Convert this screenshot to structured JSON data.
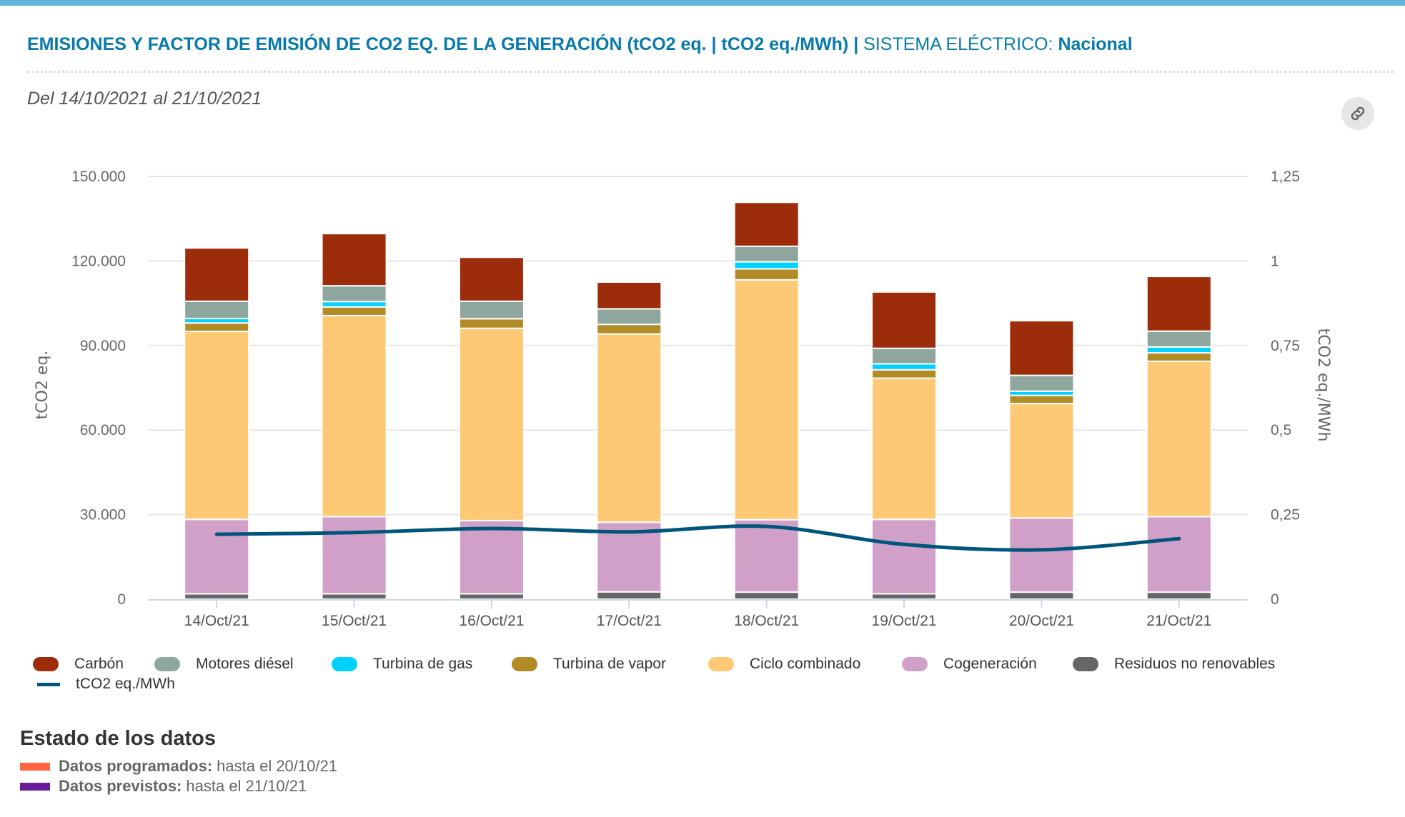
{
  "header": {
    "title_bold": "EMISIONES Y FACTOR DE EMISIÓN DE CO2 EQ. DE LA GENERACIÓN (tCO2 eq. | tCO2 eq./MWh) |",
    "title_system_label": "SISTEMA ELÉCTRICO:",
    "title_system_value": "Nacional",
    "subtitle": "Del 14/10/2021 al 21/10/2021",
    "link_icon": "link-icon"
  },
  "chart_data": {
    "type": "bar",
    "stacked": true,
    "categories": [
      "14/Oct/21",
      "15/Oct/21",
      "16/Oct/21",
      "17/Oct/21",
      "18/Oct/21",
      "19/Oct/21",
      "20/Oct/21",
      "21/Oct/21"
    ],
    "ylabel": "tCO2 eq.",
    "y2label": "tCO2 eq./MWh",
    "ylim": [
      0,
      150000
    ],
    "y2lim": [
      0,
      1.25
    ],
    "yticks": [
      "0",
      "30.000",
      "60.000",
      "90.000",
      "120.000",
      "150.000"
    ],
    "y2ticks": [
      "0",
      "0,25",
      "0,5",
      "0,75",
      "1",
      "1,25"
    ],
    "grid": true,
    "legend_position": "bottom",
    "series": [
      {
        "name": "Residuos no renovables",
        "color": "#666666",
        "values": [
          1900,
          1900,
          1900,
          2600,
          2500,
          1900,
          2500,
          2500
        ]
      },
      {
        "name": "Cogeneración",
        "color": "#d0a0c8",
        "values": [
          26400,
          27400,
          26000,
          24700,
          25700,
          26400,
          26300,
          26800
        ]
      },
      {
        "name": "Ciclo combinado",
        "color": "#fec975",
        "values": [
          66700,
          71300,
          68200,
          66800,
          85100,
          50100,
          40600,
          55100
        ]
      },
      {
        "name": "Turbina de vapor",
        "color": "#b38b26",
        "values": [
          3000,
          3100,
          3400,
          3400,
          3900,
          3000,
          2900,
          3000
        ]
      },
      {
        "name": "Turbina de gas",
        "color": "#00d2ff",
        "values": [
          1600,
          1900,
          0,
          0,
          2500,
          2100,
          1500,
          2100
        ]
      },
      {
        "name": "Motores diésel",
        "color": "#8fa69f",
        "values": [
          6100,
          5600,
          6200,
          5500,
          5500,
          5500,
          5600,
          5600
        ]
      },
      {
        "name": "Carbón",
        "color": "#9c2c0a",
        "values": [
          18900,
          18500,
          15600,
          9500,
          15600,
          20000,
          19400,
          19400
        ]
      }
    ],
    "line_series": {
      "name": "tCO2 eq./MWh",
      "color": "#00567a",
      "axis": "right",
      "values": [
        0.192,
        0.197,
        0.209,
        0.199,
        0.215,
        0.162,
        0.146,
        0.179
      ]
    }
  },
  "legend": [
    {
      "label": "Carbón",
      "color": "#9c2c0a"
    },
    {
      "label": "Motores diésel",
      "color": "#8fa69f"
    },
    {
      "label": "Turbina de gas",
      "color": "#00d2ff"
    },
    {
      "label": "Turbina de vapor",
      "color": "#b38b26"
    },
    {
      "label": "Ciclo combinado",
      "color": "#fec975"
    },
    {
      "label": "Cogeneración",
      "color": "#d0a0c8"
    },
    {
      "label": "Residuos no renovables",
      "color": "#666666"
    },
    {
      "label": "tCO2 eq./MWh",
      "color": "#00567a"
    }
  ],
  "status": {
    "title": "Estado de los datos",
    "items": [
      {
        "label": "Datos programados:",
        "value": "hasta el 20/10/21",
        "color": "#ff6540"
      },
      {
        "label": "Datos previstos:",
        "value": "hasta el 21/10/21",
        "color": "#6a1b9a"
      }
    ]
  }
}
